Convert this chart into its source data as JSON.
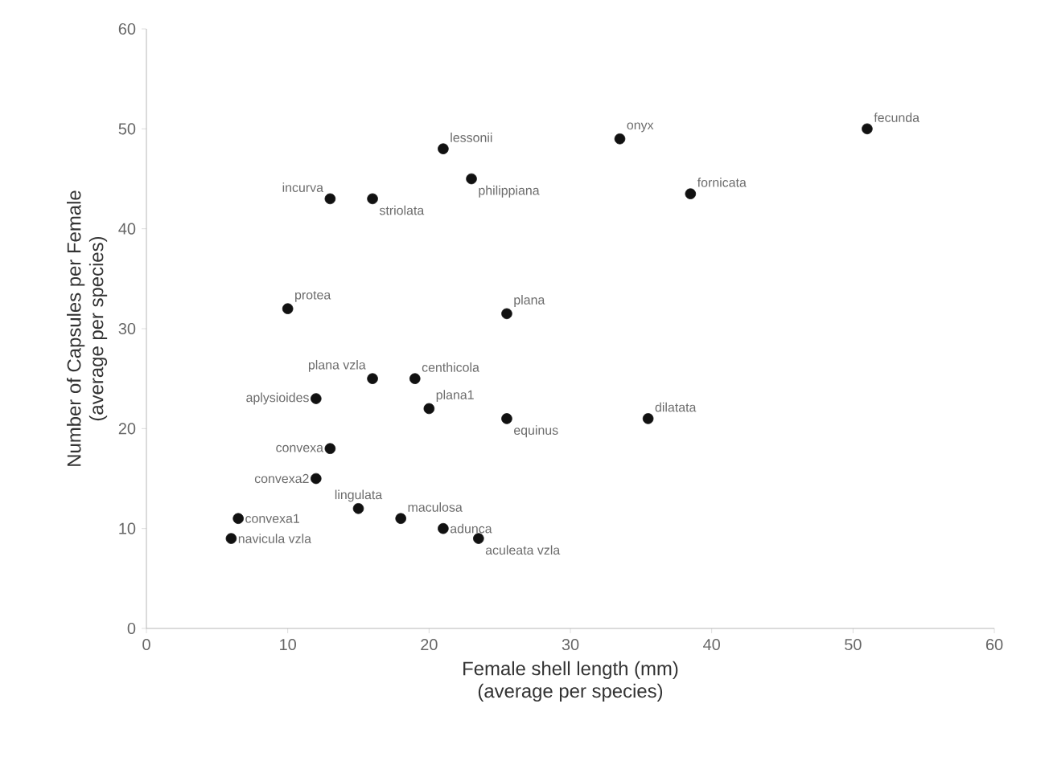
{
  "chart_data": {
    "type": "scatter",
    "xlabel": "Female shell length (mm)\n(average per species)",
    "ylabel": "Number of Capsules per Female\n(average per species)",
    "x": [
      51,
      33.5,
      21,
      23,
      13,
      16,
      38.5,
      10,
      25.5,
      16,
      19,
      12,
      20,
      25.5,
      35.5,
      13,
      12,
      15,
      18,
      21,
      23.5,
      6.5,
      6
    ],
    "series": [
      {
        "color": "#111111",
        "values": [
          50,
          49,
          48,
          45,
          43,
          43,
          43.5,
          32,
          31.5,
          25,
          25,
          23,
          22,
          21,
          21,
          18,
          15,
          12,
          11,
          10,
          9,
          11,
          9
        ]
      }
    ],
    "grid": false,
    "xlim": [
      0,
      60
    ],
    "ylim": [
      0,
      60
    ],
    "xticks": [
      0,
      10,
      20,
      30,
      40,
      50,
      60
    ],
    "yticks": [
      0,
      10,
      20,
      30,
      40,
      50,
      60
    ],
    "annotations": [
      {
        "text": "fecunda",
        "x": 51,
        "y": 50
      },
      {
        "text": "onyx",
        "x": 33.5,
        "y": 49
      },
      {
        "text": "lessonii",
        "x": 21,
        "y": 48
      },
      {
        "text": "philippiana",
        "x": 23,
        "y": 45
      },
      {
        "text": "incurva",
        "x": 13,
        "y": 43
      },
      {
        "text": "striolata",
        "x": 16,
        "y": 43
      },
      {
        "text": "fornicata",
        "x": 38.5,
        "y": 43.5
      },
      {
        "text": "protea",
        "x": 10,
        "y": 32
      },
      {
        "text": "plana",
        "x": 25.5,
        "y": 31.5
      },
      {
        "text": "plana vzla",
        "x": 16,
        "y": 25
      },
      {
        "text": "centhicola",
        "x": 19,
        "y": 25
      },
      {
        "text": "aplysioides",
        "x": 12,
        "y": 23
      },
      {
        "text": "plana1",
        "x": 20,
        "y": 22
      },
      {
        "text": "equinus",
        "x": 25.5,
        "y": 21
      },
      {
        "text": "dilatata",
        "x": 35.5,
        "y": 21
      },
      {
        "text": "convexa",
        "x": 13,
        "y": 18
      },
      {
        "text": "convexa2",
        "x": 12,
        "y": 15
      },
      {
        "text": "lingulata",
        "x": 15,
        "y": 12
      },
      {
        "text": "maculosa",
        "x": 18,
        "y": 11
      },
      {
        "text": "adunca",
        "x": 21,
        "y": 10
      },
      {
        "text": "aculeata vzla",
        "x": 23.5,
        "y": 9
      },
      {
        "text": "convexa1",
        "x": 6.5,
        "y": 11
      },
      {
        "text": "navicula vzla",
        "x": 6,
        "y": 9
      }
    ]
  }
}
